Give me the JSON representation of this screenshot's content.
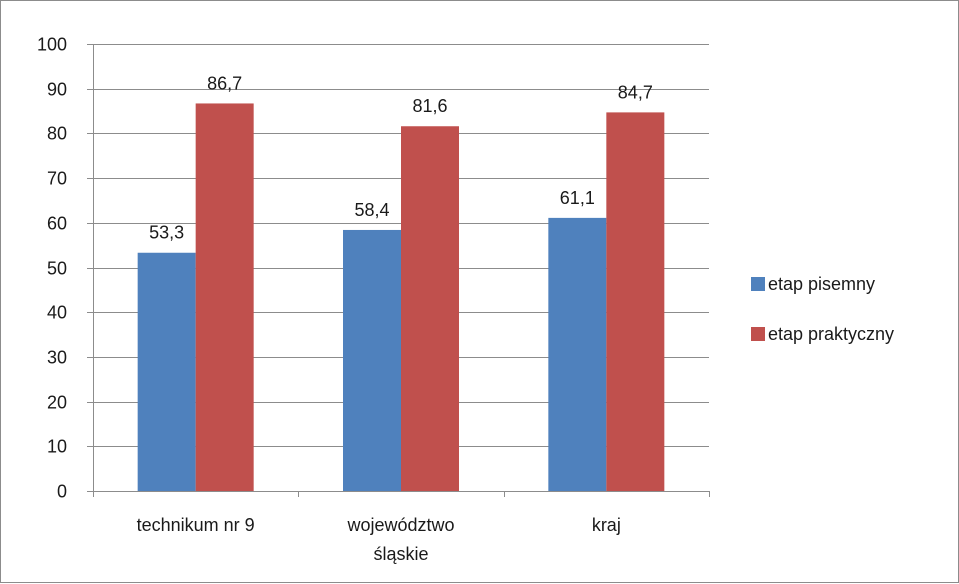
{
  "chart_data": {
    "type": "bar",
    "categories": [
      "technikum nr 9",
      "województwo\nśląskie",
      "kraj"
    ],
    "series": [
      {
        "name": "etap pisemny",
        "color": "#4F81BD",
        "values": [
          53.3,
          58.4,
          61.1
        ],
        "labels": [
          "53,3",
          "58,4",
          "61,1"
        ]
      },
      {
        "name": "etap praktyczny",
        "color": "#C0504D",
        "values": [
          86.7,
          81.6,
          84.7
        ],
        "labels": [
          "86,7",
          "81,6",
          "84,7"
        ]
      }
    ],
    "title": "",
    "xlabel": "",
    "ylabel": "",
    "ylim": [
      0,
      100
    ],
    "yticks": [
      0,
      10,
      20,
      30,
      40,
      50,
      60,
      70,
      80,
      90,
      100
    ],
    "grid": true,
    "legend_position": "right"
  }
}
